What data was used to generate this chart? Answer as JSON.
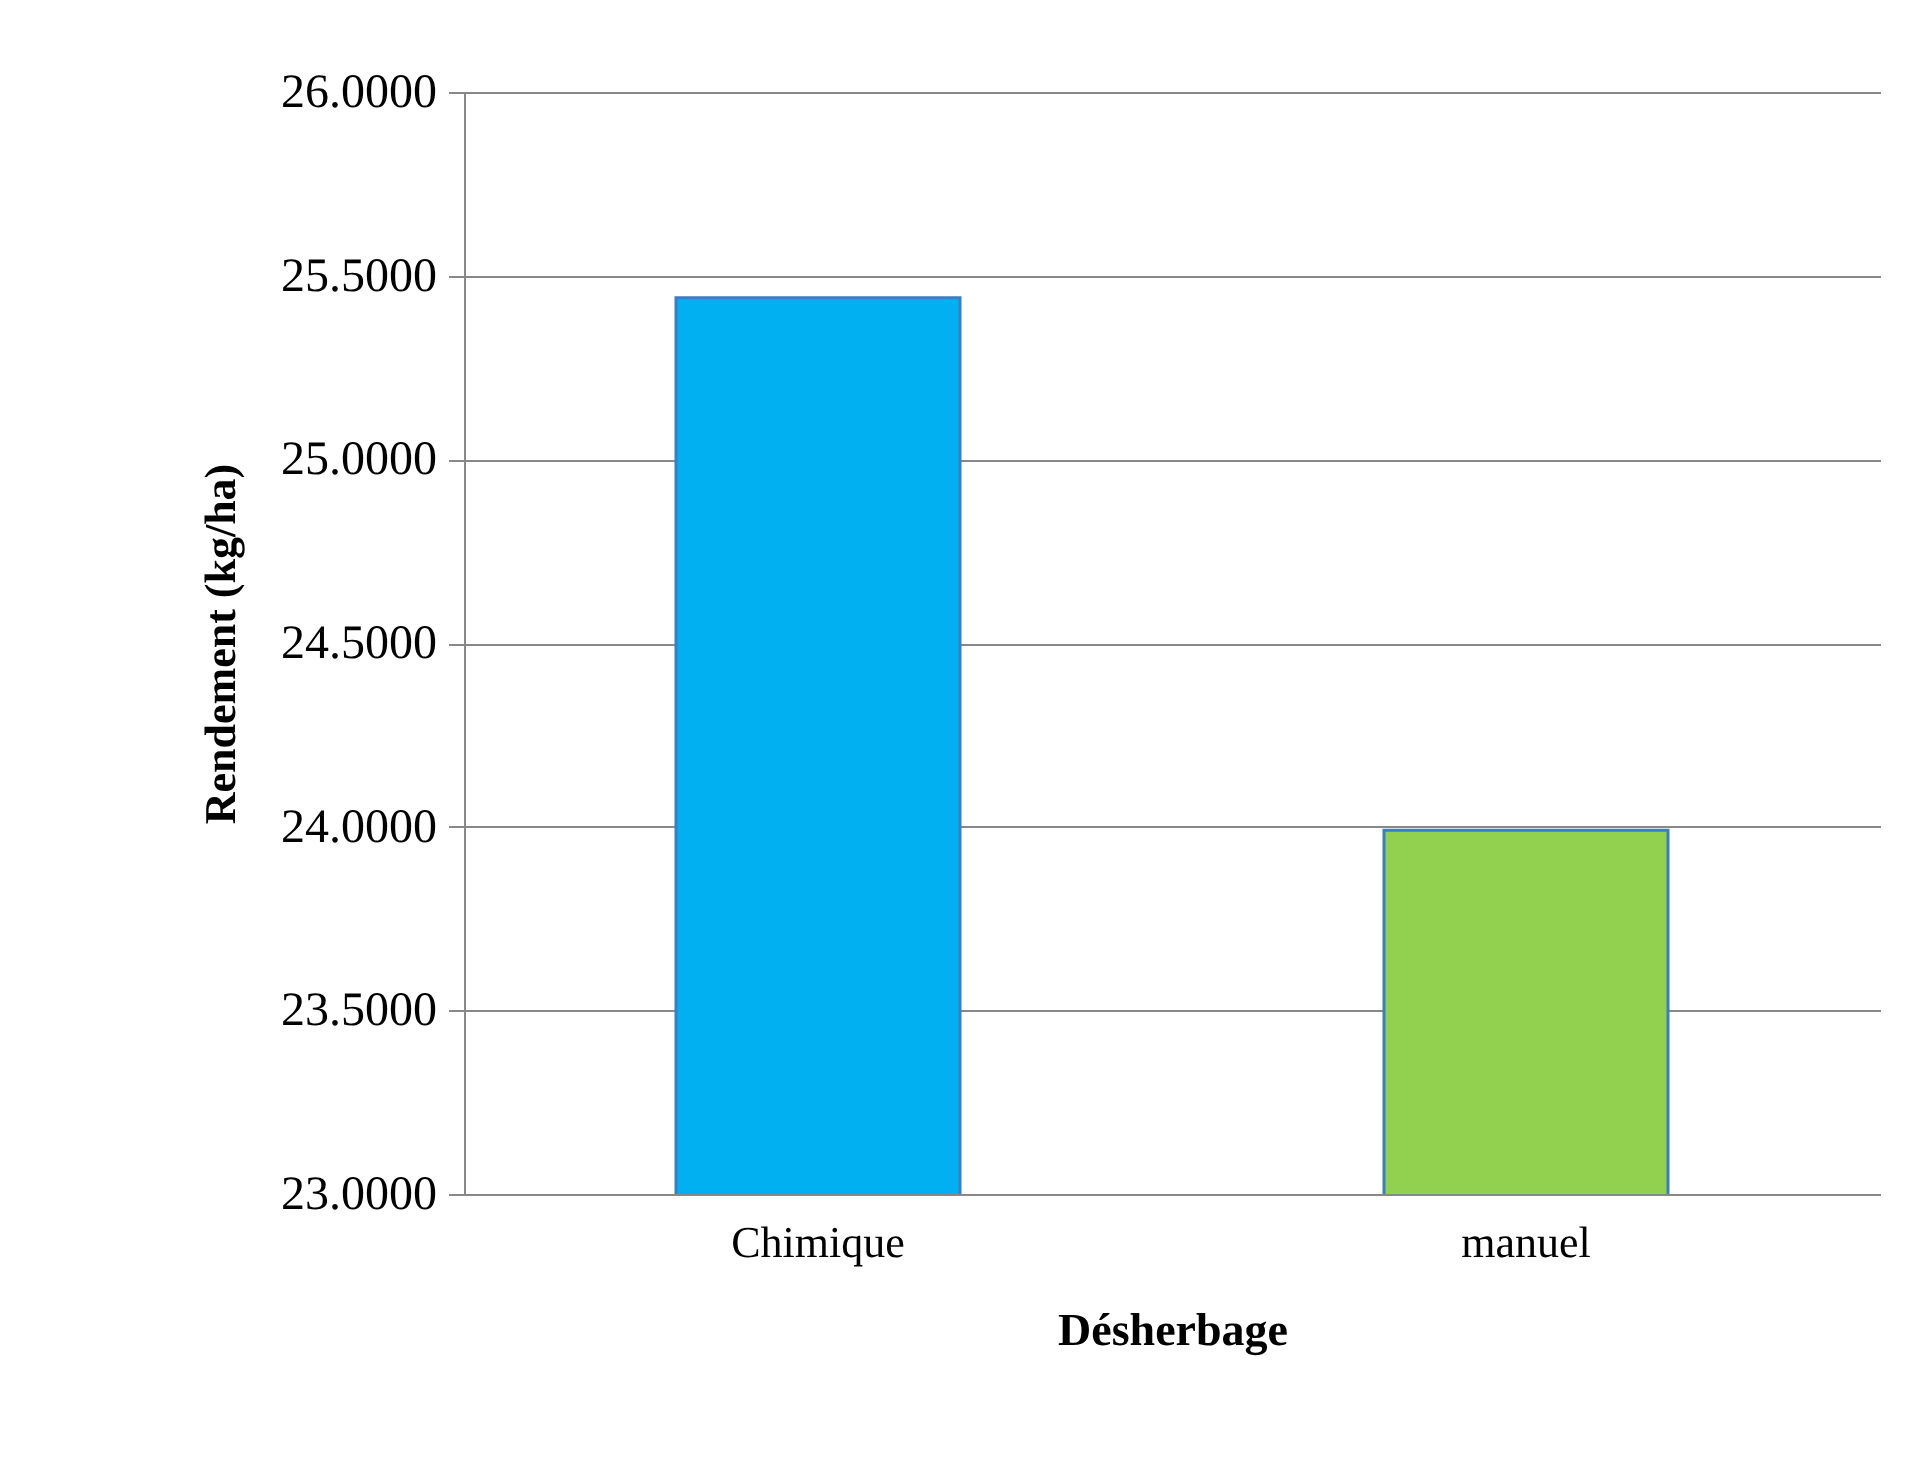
{
  "chart_data": {
    "type": "bar",
    "xlabel": "Désherbage",
    "ylabel": "Rendement (kg/ha)",
    "categories": [
      "Chimique",
      "manuel"
    ],
    "values": [
      25.44,
      23.99
    ],
    "colors": [
      "#00b0f0",
      "#92d050"
    ],
    "ylim": [
      23,
      26
    ],
    "yticks": [
      {
        "value": 23,
        "label": "23.0000"
      },
      {
        "value": 23.5,
        "label": "23.5000"
      },
      {
        "value": 24,
        "label": "24.0000"
      },
      {
        "value": 24.5,
        "label": "24.5000"
      },
      {
        "value": 25,
        "label": "25.0000"
      },
      {
        "value": 25.5,
        "label": "25.5000"
      },
      {
        "value": 26,
        "label": "26.0000"
      }
    ],
    "grid": "y"
  }
}
